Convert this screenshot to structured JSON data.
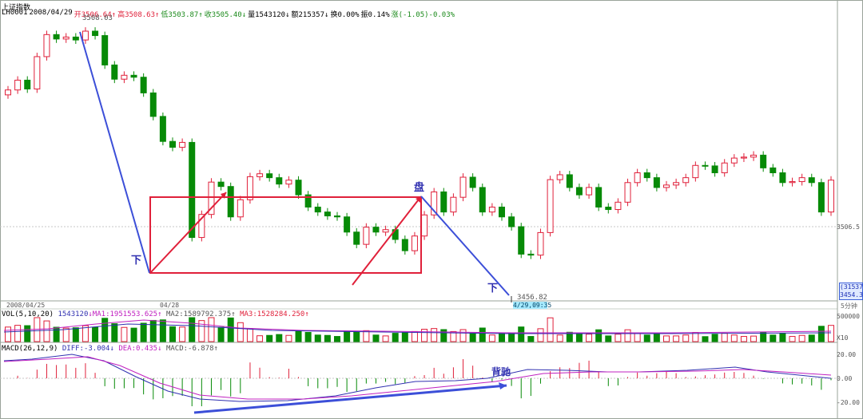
{
  "window": {
    "title": "上证指数"
  },
  "quote": {
    "code": "LH0001",
    "date": "2008/04/29",
    "open": "开3506.64↑",
    "high": "高3508.63↑",
    "low": "低3503.87↑",
    "close": "收3505.40↓",
    "volume": "量1543120↓",
    "amount": "额215357↓",
    "turnover": "换0.00%",
    "amplitude": "振0.14%",
    "change": "涨(-1.05)-0.03%"
  },
  "price_panel": {
    "high_label": "3508.03",
    "low_label": "3456.82",
    "right_level": "3506.5",
    "price_tag_top": "(31537)",
    "price_tag_bottom": "3454.30",
    "time_axis": [
      "2008/04/25",
      "04/28"
    ],
    "cursor_time": "4/29,09:35",
    "bars_label": "5分钟",
    "annotations": [
      "下",
      "盘",
      "下"
    ]
  },
  "vol_panel": {
    "title": "VOL(5,10,20)",
    "v": "1543120",
    "ma1": "↓MA1:1951553.625↑",
    "ma2": "MA2:1589792.375↑",
    "ma3": "MA3:1528284.250↑",
    "y_labels": [
      "500000",
      "X10"
    ]
  },
  "macd_panel": {
    "title": "MACD(26,12,9)",
    "diff": "DIFF:-3.004↓",
    "dea": "DEA:0.435↓",
    "macd": "MACD:-6.878↑",
    "y_labels": [
      "20.00",
      "0.00",
      "-20.00"
    ],
    "annotation": "背驰"
  },
  "colors": {
    "up": "#e0203a",
    "down": "#078a07",
    "arrow_red": "#e0203a",
    "arrow_blue": "#3c4fd8"
  },
  "chart_data": {
    "type": "candlestick",
    "candles_close": [
      3496.9,
      3498.9,
      3497.1,
      3503.7,
      3508.2,
      3507.3,
      3507.7,
      3507.1,
      3508.9,
      3508.0,
      3502.0,
      3499.1,
      3499.9,
      3499.5,
      3496.3,
      3491.5,
      3486.4,
      3485.2,
      3486.2,
      3466.8,
      3471.5,
      3478.1,
      3477.2,
      3471.0,
      3474.5,
      3479.2,
      3479.8,
      3479.0,
      3477.7,
      3478.5,
      3475.5,
      3473.0,
      3472.0,
      3471.2,
      3471.0,
      3467.9,
      3465.4,
      3468.9,
      3467.9,
      3468.4,
      3466.4,
      3464.1,
      3467.1,
      3471.4,
      3476.1,
      3472.0,
      3475.0,
      3479.1,
      3477.0,
      3472.0,
      3473.0,
      3471.0,
      3469.0,
      3463.4,
      3463.2,
      3467.8,
      3478.6,
      3479.6,
      3477.0,
      3475.5,
      3477.0,
      3473.0,
      3472.5,
      3474.0,
      3478.0,
      3480.0,
      3479.0,
      3477.0,
      3477.5,
      3478.0,
      3479.0,
      3481.5,
      3481.4,
      3480.0,
      3482.0,
      3483.0,
      3483.2,
      3483.6,
      3481.0,
      3480.0,
      3478.0,
      3478.2,
      3479.0,
      3478.0,
      3472.0,
      3478.5
    ],
    "y_unit": "index points"
  }
}
